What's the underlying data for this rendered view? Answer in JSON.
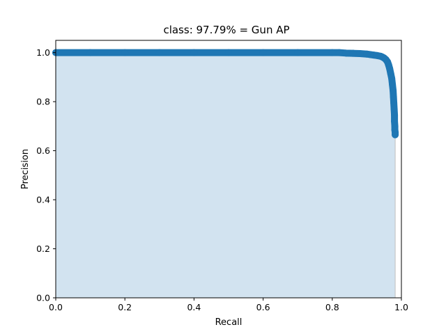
{
  "chart_data": {
    "type": "area",
    "title": "class: 97.79% = Gun AP",
    "xlabel": "Recall",
    "ylabel": "Precision",
    "xlim": [
      0,
      1.0
    ],
    "ylim": [
      0,
      1.05
    ],
    "xticks": [
      "0.0",
      "0.2",
      "0.4",
      "0.6",
      "0.8",
      "1.0"
    ],
    "yticks": [
      "0.0",
      "0.2",
      "0.4",
      "0.6",
      "0.8",
      "1.0"
    ],
    "grid": false,
    "legend": "none",
    "series": [
      {
        "x": [
          0.0,
          0.1,
          0.2,
          0.3,
          0.4,
          0.5,
          0.6,
          0.7,
          0.8,
          0.82,
          0.84,
          0.86,
          0.88,
          0.9,
          0.91,
          0.92,
          0.93,
          0.94,
          0.945,
          0.95,
          0.955,
          0.96,
          0.963,
          0.966,
          0.969,
          0.972,
          0.974,
          0.976,
          0.977,
          0.978,
          0.979,
          0.98,
          0.98,
          0.981,
          0.981,
          0.982,
          0.982
        ],
        "y": [
          1.0,
          1.0,
          1.0,
          1.0,
          1.0,
          1.0,
          1.0,
          1.0,
          1.0,
          1.0,
          0.998,
          0.997,
          0.996,
          0.994,
          0.992,
          0.99,
          0.988,
          0.985,
          0.982,
          0.978,
          0.972,
          0.962,
          0.95,
          0.935,
          0.915,
          0.895,
          0.87,
          0.845,
          0.82,
          0.795,
          0.77,
          0.745,
          0.72,
          0.7,
          0.685,
          0.675,
          0.665
        ]
      }
    ],
    "colors": {
      "line": "#1f77b4",
      "fill": "#d2e3f0"
    }
  }
}
